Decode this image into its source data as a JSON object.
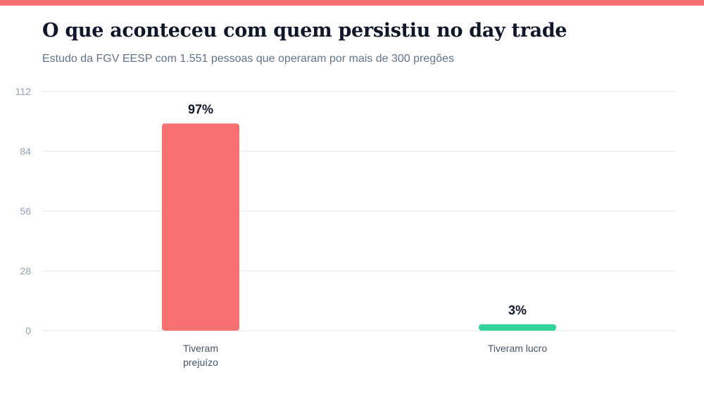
{
  "header": {
    "title": "O que aconteceu com quem persistiu no day trade",
    "subtitle": "Estudo da FGV EESP com 1.551 pessoas que operaram por mais de 300 pregões"
  },
  "colors": {
    "accent_bar": "#f87171",
    "loss": "#f87171",
    "profit": "#34d399",
    "grid": "#e5e7eb",
    "tick": "#94a3b8",
    "label": "#475569",
    "value": "#0f1729"
  },
  "chart_data": {
    "type": "bar",
    "title": "O que aconteceu com quem persistiu no day trade",
    "subtitle": "Estudo da FGV EESP com 1.551 pessoas que operaram por mais de 300 pregões",
    "xlabel": "",
    "ylabel": "",
    "categories": [
      [
        "Tiveram",
        "prejuízo"
      ],
      [
        "Tiveram lucro"
      ]
    ],
    "values": [
      97,
      3
    ],
    "value_labels": [
      "97%",
      "3%"
    ],
    "ylim": [
      0,
      112
    ],
    "yticks": [
      0,
      28,
      56,
      84,
      112
    ],
    "grid": true,
    "legend": "none"
  }
}
